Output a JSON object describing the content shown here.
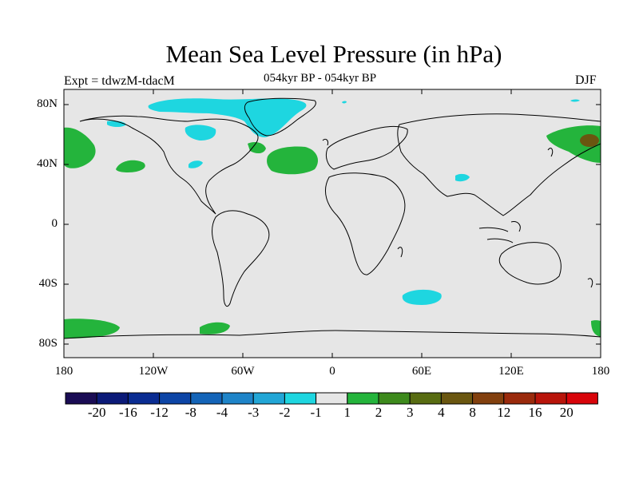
{
  "title": "Mean Sea Level Pressure (in hPa)",
  "subtitle": "054kyr BP - 054kyr BP",
  "experiment_label": "Expt = tdwzM-tdacM",
  "season": "DJF",
  "axes": {
    "lat_ticks": [
      "80N",
      "40N",
      "0",
      "40S",
      "80S"
    ],
    "lon_ticks": [
      "180",
      "120W",
      "60W",
      "0",
      "60E",
      "120E",
      "180"
    ]
  },
  "colorbar": {
    "colors": [
      "#1a0c54",
      "#0b1a78",
      "#0a2c92",
      "#0d45a6",
      "#1464b8",
      "#1e84c8",
      "#22a6d6",
      "#1ed6e0",
      "#e6e6e6",
      "#24b43c",
      "#3d8a1c",
      "#586c12",
      "#6a5610",
      "#82400e",
      "#9a2a0c",
      "#b8140a",
      "#d8040a"
    ],
    "labels": [
      "-20",
      "-16",
      "-12",
      "-8",
      "-4",
      "-3",
      "-2",
      "-1",
      "1",
      "2",
      "3",
      "4",
      "8",
      "12",
      "16",
      "20"
    ]
  },
  "map": {
    "background": "#e6e6e6",
    "regions": [
      {
        "name": "green-anomaly-pacific-ne",
        "color": "#24b43c"
      },
      {
        "name": "green-anomaly-atlantic",
        "color": "#24b43c"
      },
      {
        "name": "cyan-anomaly-greenland",
        "color": "#1ed6e0"
      },
      {
        "name": "cyan-anomaly-south-indian",
        "color": "#1ed6e0"
      }
    ]
  }
}
